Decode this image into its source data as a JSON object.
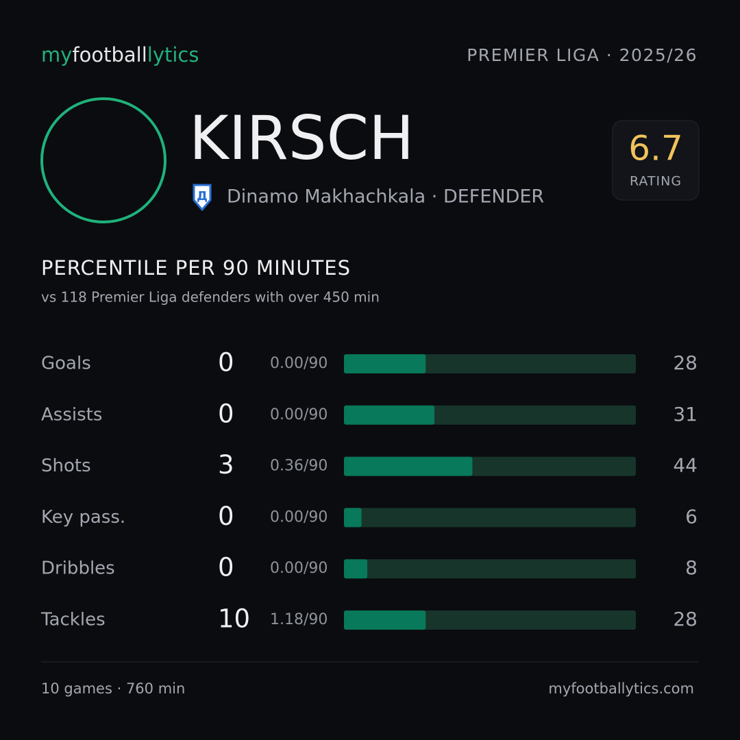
{
  "header": {
    "brand": [
      "my",
      "football",
      "lytics"
    ],
    "competition": "PREMIER LIGA · 2025/26"
  },
  "player": {
    "name": "KIRSCH",
    "club_line": "Dinamo Makhachkala · DEFENDER",
    "rating": 6.7,
    "rating_label": "RATING"
  },
  "section": {
    "title": "PERCENTILE PER 90 MINUTES",
    "subtitle": "vs 118 Premier Liga defenders with over 450 min"
  },
  "stats": {
    "xlim": [
      0,
      100
    ],
    "rows": [
      {
        "label": "Goals",
        "total": 0,
        "per90": "0.00/90",
        "percentile": 28
      },
      {
        "label": "Assists",
        "total": 0,
        "per90": "0.00/90",
        "percentile": 31
      },
      {
        "label": "Shots",
        "total": 3,
        "per90": "0.36/90",
        "percentile": 44
      },
      {
        "label": "Key pass.",
        "total": 0,
        "per90": "0.00/90",
        "percentile": 6
      },
      {
        "label": "Dribbles",
        "total": 0,
        "per90": "0.00/90",
        "percentile": 8
      },
      {
        "label": "Tackles",
        "total": 10,
        "per90": "1.18/90",
        "percentile": 28
      }
    ]
  },
  "footer": {
    "summary": "10 games · 760 min",
    "site": "myfootballytics.com"
  }
}
